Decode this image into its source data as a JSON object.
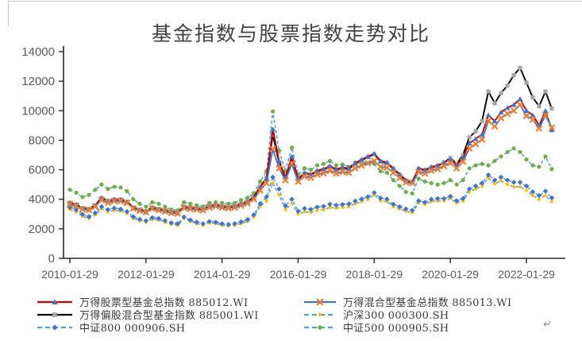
{
  "page": {
    "return_mark": "↵"
  },
  "chart_data": {
    "type": "line",
    "title": "基金指数与股票指数走势对比",
    "grid": false,
    "legend_position": "bottom-two-columns",
    "x_start": "2010-01",
    "x_step_months": 2,
    "n_points": 77,
    "axis_color": "#262626",
    "label_color": "#595959",
    "title_color": "#424242",
    "x_axis": {
      "tick_labels": [
        "2010-01-29",
        "2012-01-29",
        "2014-01-29",
        "2016-01-29",
        "2018-01-29",
        "2020-01-29",
        "2022-01-29"
      ],
      "tick_indices": [
        0,
        12,
        24,
        36,
        48,
        60,
        72
      ]
    },
    "y_axis": {
      "min": 0,
      "max": 14000,
      "tick_step": 2000,
      "ticks": [
        0,
        2000,
        4000,
        6000,
        8000,
        10000,
        12000,
        14000
      ],
      "tick_labels": [
        "0",
        "2000",
        "4000",
        "6000",
        "8000",
        "10000",
        "12000",
        "14000"
      ]
    },
    "series": [
      {
        "name": "沪深300",
        "code": "000300.SH",
        "legend": "沪深300 000300.SH",
        "line_color": "#5B9BD5",
        "line_style": "dashed",
        "marker": "dot",
        "marker_color": "#FFC000",
        "values": [
          3320,
          3150,
          2850,
          2700,
          2950,
          3350,
          3150,
          3250,
          3200,
          3050,
          2700,
          2550,
          2450,
          2650,
          2600,
          2450,
          2300,
          2250,
          2700,
          2500,
          2350,
          2250,
          2400,
          2350,
          2250,
          2200,
          2250,
          2350,
          2500,
          2800,
          3500,
          3900,
          5100,
          4300,
          3300,
          3700,
          3000,
          3150,
          3100,
          3250,
          3300,
          3450,
          3400,
          3450,
          3500,
          3700,
          3850,
          4000,
          4300,
          3900,
          3850,
          3500,
          3350,
          3200,
          3100,
          3750,
          3650,
          3850,
          3900,
          3900,
          4050,
          3750,
          3900,
          4500,
          4700,
          4900,
          5450,
          5050,
          5250,
          5000,
          4850,
          4850,
          4600,
          4250,
          4000,
          4250,
          3850
        ]
      },
      {
        "name": "中证800",
        "code": "000906.SH",
        "legend": "中证800 000906.SH",
        "line_color": "#5B9BD5",
        "line_style": "dashed",
        "marker": "diamond",
        "marker_color": "#4472C4",
        "values": [
          3450,
          3280,
          2980,
          2830,
          3080,
          3500,
          3300,
          3400,
          3330,
          3170,
          2820,
          2650,
          2550,
          2760,
          2700,
          2550,
          2400,
          2350,
          2800,
          2600,
          2450,
          2350,
          2500,
          2450,
          2350,
          2300,
          2350,
          2470,
          2620,
          2950,
          3700,
          4150,
          5500,
          4700,
          3550,
          4000,
          3200,
          3380,
          3320,
          3470,
          3520,
          3670,
          3600,
          3650,
          3680,
          3880,
          4020,
          4170,
          4450,
          4080,
          4020,
          3660,
          3500,
          3350,
          3250,
          3900,
          3800,
          4000,
          4050,
          4050,
          4200,
          3900,
          4050,
          4700,
          4900,
          5100,
          5650,
          5300,
          5500,
          5300,
          5150,
          5150,
          4900,
          4500,
          4250,
          4550,
          4100
        ]
      },
      {
        "name": "中证500",
        "code": "000905.SH",
        "legend": "中证500 000905.SH",
        "line_color": "#5B9BD5",
        "line_style": "dashed",
        "marker": "circle",
        "marker_color": "#70AD47",
        "values": [
          4650,
          4450,
          4150,
          4300,
          4650,
          5000,
          4700,
          4850,
          4800,
          4550,
          4000,
          3700,
          3500,
          3800,
          3700,
          3500,
          3300,
          3250,
          3800,
          3700,
          3600,
          3500,
          3750,
          3800,
          3750,
          3700,
          3750,
          3950,
          4100,
          4400,
          5200,
          5900,
          9950,
          7300,
          5900,
          7500,
          5700,
          6100,
          6000,
          6300,
          6400,
          6600,
          6300,
          6350,
          6200,
          6500,
          6550,
          6450,
          6400,
          5900,
          5800,
          5300,
          4900,
          4500,
          4400,
          5400,
          5200,
          5100,
          5000,
          5100,
          5300,
          5000,
          5300,
          6100,
          6300,
          6400,
          6300,
          6600,
          6900,
          7200,
          7450,
          7200,
          6700,
          6300,
          6200,
          6900,
          6050
        ]
      },
      {
        "name": "万得偏股混合型基金指数",
        "code": "885001.WI",
        "legend": "万得偏股混合型基金指数 885001.WI",
        "line_color": "#000000",
        "line_style": "solid",
        "marker": "square",
        "marker_color": "#A5A5A5",
        "values": [
          3780,
          3660,
          3400,
          3350,
          3600,
          4100,
          3900,
          4000,
          4000,
          3850,
          3450,
          3300,
          3200,
          3450,
          3350,
          3250,
          3150,
          3100,
          3500,
          3450,
          3400,
          3350,
          3550,
          3650,
          3550,
          3500,
          3550,
          3700,
          3850,
          4150,
          4850,
          5450,
          8350,
          6500,
          5450,
          6800,
          5350,
          5750,
          5650,
          5900,
          6000,
          6200,
          6000,
          6100,
          6050,
          6400,
          6650,
          6850,
          7050,
          6550,
          6450,
          6050,
          5650,
          5250,
          5150,
          6050,
          5950,
          6150,
          6250,
          6500,
          6800,
          6400,
          7000,
          8200,
          8600,
          9300,
          11300,
          10500,
          11200,
          11700,
          12400,
          12900,
          11900,
          10900,
          10300,
          11300,
          10150
        ]
      },
      {
        "name": "万得股票型基金总指数",
        "code": "885012.WI",
        "legend": "万得股票型基金总指数 885012.WI",
        "line_color": "#C00000",
        "line_style": "solid",
        "marker": "triangle",
        "marker_color": "#4472C4",
        "values": [
          3720,
          3600,
          3350,
          3300,
          3550,
          4050,
          3850,
          3950,
          3950,
          3800,
          3400,
          3250,
          3150,
          3400,
          3300,
          3200,
          3100,
          3050,
          3450,
          3400,
          3350,
          3300,
          3500,
          3600,
          3500,
          3450,
          3500,
          3650,
          3800,
          4100,
          4800,
          5400,
          8750,
          6600,
          5500,
          6900,
          5400,
          5800,
          5700,
          5950,
          6050,
          6250,
          6050,
          6150,
          6100,
          6450,
          6700,
          6900,
          7100,
          6600,
          6500,
          6100,
          5700,
          5300,
          5200,
          6100,
          6000,
          6200,
          6300,
          6500,
          6700,
          6300,
          6800,
          7800,
          8100,
          8400,
          9700,
          9300,
          9900,
          10200,
          10400,
          10800,
          10000,
          9700,
          9000,
          10000,
          8700
        ]
      },
      {
        "name": "万得混合型基金总指数",
        "code": "885013.WI",
        "legend": "万得混合型基金总指数 885013.WI",
        "line_color": "#4472C4",
        "line_style": "solid",
        "marker": "x",
        "marker_color": "#ED7D31",
        "values": [
          3650,
          3550,
          3320,
          3280,
          3500,
          3950,
          3780,
          3880,
          3880,
          3750,
          3380,
          3230,
          3130,
          3360,
          3270,
          3180,
          3080,
          3030,
          3400,
          3350,
          3300,
          3260,
          3440,
          3530,
          3440,
          3400,
          3440,
          3580,
          3720,
          4000,
          4600,
          5100,
          7400,
          6100,
          5300,
          6400,
          5200,
          5550,
          5470,
          5680,
          5760,
          5930,
          5760,
          5850,
          5800,
          6100,
          6300,
          6450,
          6600,
          6200,
          6150,
          5800,
          5450,
          5150,
          5100,
          5850,
          5750,
          5950,
          6050,
          6250,
          6450,
          6100,
          6550,
          7450,
          7750,
          8050,
          9300,
          8950,
          9500,
          9800,
          10000,
          10400,
          9650,
          9400,
          8800,
          9700,
          8850
        ]
      }
    ]
  }
}
